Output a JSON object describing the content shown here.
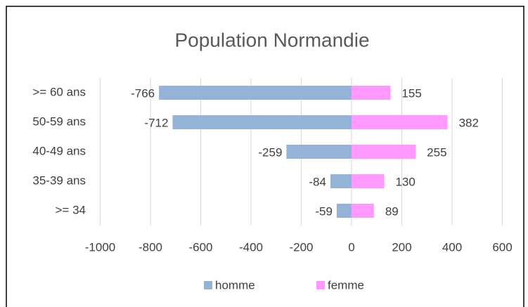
{
  "chart_data": {
    "type": "hbar",
    "title": "Population Normandie",
    "categories": [
      ">= 60 ans",
      "50-59 ans",
      "40-49 ans",
      "35-39 ans",
      ">= 34"
    ],
    "series": [
      {
        "name": "homme",
        "color": "#95b3d7",
        "values": [
          -766,
          -712,
          -259,
          -84,
          -59
        ]
      },
      {
        "name": "femme",
        "color": "#ff99ff",
        "values": [
          155,
          382,
          255,
          130,
          89
        ]
      }
    ],
    "xlim": [
      -1000,
      600
    ],
    "xticks": [
      -1000,
      -800,
      -600,
      -400,
      -200,
      0,
      200,
      400,
      600
    ],
    "grid": true,
    "legend": "bottom"
  }
}
